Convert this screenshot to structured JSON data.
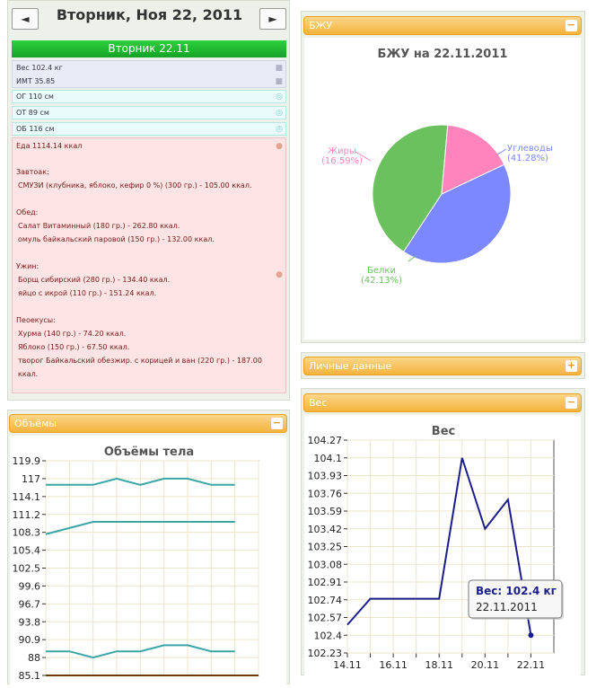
{
  "nav": {
    "prev_icon": "◄",
    "next_icon": "►",
    "date_title": "Вторник, Ноя 22, 2011"
  },
  "day_bar": "Вторник 22.11",
  "metrics": {
    "weight": "Вес 102.4 кг",
    "bmi": "ИМТ 35.85",
    "og": "ОГ 110 см",
    "ot": "ОТ 89 см",
    "ob": "ОБ 116 см"
  },
  "food": {
    "total": "Еда 1114.14 ккал",
    "lines": [
      {
        "text": "Завтоак:",
        "header": true
      },
      {
        "text": "СМУЗИ (клубника, яблоко, кефир 0 %) (300 гр.) - 105.00 ккал.",
        "header": false
      },
      {
        "text": "Обед:",
        "header": true
      },
      {
        "text": "Салат Витаминный (180 гр.) - 262.80 ккал.",
        "header": false
      },
      {
        "text": "омуль байкальский паровой (150 гр.) - 132.00 ккал.",
        "header": false
      },
      {
        "text": "Ужин:",
        "header": true
      },
      {
        "text": "Борщ сибирский (280 гр.) - 134.40 ккал.",
        "header": false
      },
      {
        "text": "яйцо с икрой (110 гр.) - 151.24 ккал.",
        "header": false
      },
      {
        "text": "Пеоекусы:",
        "header": true
      },
      {
        "text": "Хурма (140 гр.) - 74.20 ккал.",
        "header": false
      },
      {
        "text": "Яблоко (150 гр.) - 67.50 ккал.",
        "header": false
      },
      {
        "text": "творог Байкальский обезжир. с корицей и ван (220 гр.) - 187.00",
        "header": false
      },
      {
        "text": "ккал.",
        "header": false
      }
    ]
  },
  "panels": {
    "bju": {
      "title": "БЖУ",
      "toggle": "−"
    },
    "personal": {
      "title": "Личные данные",
      "toggle": "+"
    },
    "weight": {
      "title": "Вес",
      "toggle": "−"
    },
    "volumes": {
      "title": "Объёмы",
      "toggle": "−"
    }
  },
  "colors": {
    "accent": "#f4b33c",
    "green": "#1eb92e",
    "pink_bg": "#fce4e4"
  },
  "chart_data": [
    {
      "type": "pie",
      "title": "БЖУ на 22.11.2011",
      "slices": [
        {
          "name": "Углеводы",
          "pct": "(41.28%)",
          "value": 41.28,
          "color": "#7b88ff"
        },
        {
          "name": "Белки",
          "pct": "(42.13%)",
          "value": 42.13,
          "color": "#6cc15f"
        },
        {
          "name": "Жиры",
          "pct": "(16.59%)",
          "value": 16.59,
          "color": "#ff84bc"
        }
      ]
    },
    {
      "type": "line",
      "title": "Вес",
      "x": [
        14,
        15,
        16,
        17,
        18,
        19,
        20,
        21,
        22
      ],
      "xticks": [
        "14.11",
        "16.11",
        "18.11",
        "20.11",
        "22.11"
      ],
      "xtick_vals": [
        14,
        16,
        18,
        20,
        22
      ],
      "xlim": [
        14,
        23
      ],
      "yticks": [
        "104.27",
        "104.1",
        "103.93",
        "103.76",
        "103.59",
        "103.42",
        "103.25",
        "103.08",
        "102.91",
        "102.74",
        "102.57",
        "102.4",
        "102.23"
      ],
      "ylim": [
        102.23,
        104.27
      ],
      "values": [
        102.5,
        102.75,
        102.75,
        102.75,
        102.75,
        104.1,
        103.42,
        103.7,
        102.4
      ],
      "color": "#1b1e8a",
      "tooltip": {
        "label": "Вес: 102.4 кг",
        "date": "22.11.2011"
      }
    },
    {
      "type": "line",
      "title": "Объёмы тела",
      "x": [
        0,
        1,
        2,
        3,
        4,
        5,
        6,
        7,
        8
      ],
      "xlim": [
        0,
        9
      ],
      "yticks": [
        "119.9",
        "117",
        "114.1",
        "111.2",
        "108.3",
        "105.4",
        "102.5",
        "99.6",
        "96.7",
        "93.8",
        "90.9",
        "88",
        "85.1"
      ],
      "ylim": [
        85.1,
        119.9
      ],
      "series": [
        {
          "name": "ОБ",
          "values": [
            116,
            116,
            116,
            117,
            116,
            117,
            117,
            116,
            116
          ]
        },
        {
          "name": "ОГ",
          "values": [
            108,
            109,
            110,
            110,
            110,
            110,
            110,
            110,
            110
          ]
        },
        {
          "name": "ОТ",
          "values": [
            89,
            89,
            88,
            89,
            89,
            90,
            90,
            89,
            89
          ]
        }
      ],
      "color": "#3aa6a6"
    }
  ]
}
